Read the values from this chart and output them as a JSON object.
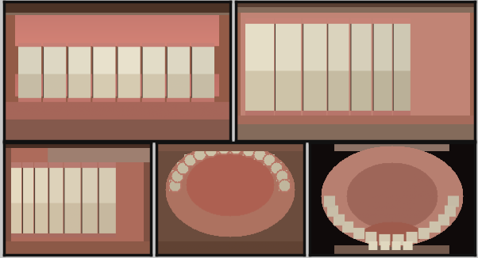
{
  "panel_bg": "#c8c8c8",
  "border_color": "#111111",
  "positions": {
    "A": [
      0.008,
      0.455,
      0.474,
      0.538
    ],
    "B": [
      0.494,
      0.455,
      0.499,
      0.538
    ],
    "C": [
      0.008,
      0.012,
      0.308,
      0.435
    ],
    "D": [
      0.328,
      0.012,
      0.308,
      0.435
    ],
    "E": [
      0.648,
      0.012,
      0.345,
      0.435
    ]
  },
  "colors": {
    "skin_dark": [
      100,
      65,
      50
    ],
    "skin_med": [
      160,
      100,
      80
    ],
    "gum_pink": [
      200,
      130,
      120
    ],
    "gum_bright": [
      220,
      155,
      145
    ],
    "lip_pink": [
      185,
      115,
      105
    ],
    "tooth_white": [
      240,
      235,
      210
    ],
    "tooth_yellow": [
      220,
      205,
      155
    ],
    "tooth_cream": [
      230,
      220,
      185
    ],
    "retractor_gray": [
      160,
      145,
      130
    ],
    "tongue_pink": [
      185,
      110,
      100
    ],
    "dark_bg": [
      15,
      10,
      10
    ],
    "palate_pink": [
      200,
      145,
      135
    ],
    "beard_dark": [
      60,
      45,
      38
    ]
  }
}
